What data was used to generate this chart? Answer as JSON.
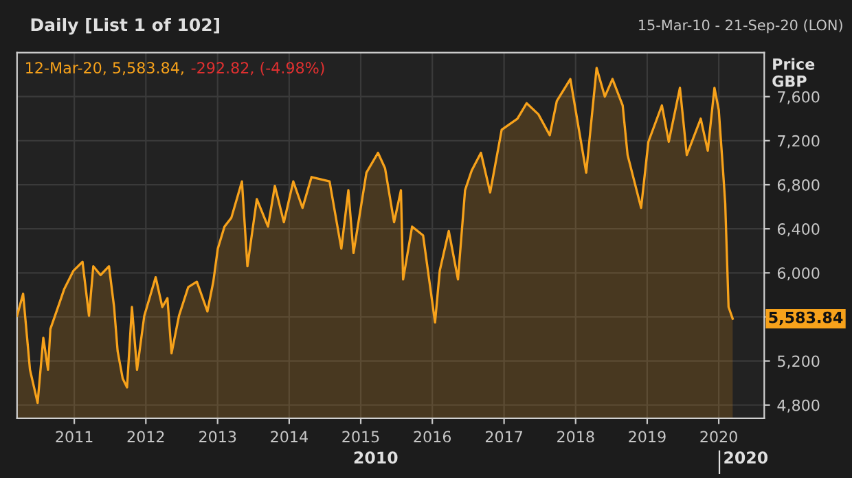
{
  "chart_data": {
    "type": "area",
    "title": "Daily [List 1 of 102]",
    "subtitle": "15-Mar-10 - 21-Sep-20 (LON)",
    "ylabel": "Price\nGBP",
    "series": [
      {
        "name": "12-Mar-20, 5,583.84,",
        "color": "#f7a21b",
        "x": [
          "2010-03-15",
          "2010-04-15",
          "2010-05-20",
          "2010-06-28",
          "2010-07-27",
          "2010-08-20",
          "2010-09-01",
          "2010-10-18",
          "2010-11-10",
          "2010-12-28",
          "2011-02-12",
          "2011-03-17",
          "2011-04-08",
          "2011-05-15",
          "2011-06-27",
          "2011-07-23",
          "2011-08-10",
          "2011-09-05",
          "2011-09-27",
          "2011-10-22",
          "2011-11-17",
          "2011-12-24",
          "2012-02-20",
          "2012-03-25",
          "2012-04-20",
          "2012-05-11",
          "2012-06-18",
          "2012-08-04",
          "2012-09-17",
          "2012-11-10",
          "2012-12-10",
          "2013-01-02",
          "2013-02-05",
          "2013-03-12",
          "2013-05-05",
          "2013-06-02",
          "2013-07-20",
          "2013-09-15",
          "2013-10-20",
          "2013-12-05",
          "2014-01-22",
          "2014-03-10",
          "2014-04-25",
          "2014-07-26",
          "2014-09-24",
          "2014-10-30",
          "2014-11-25",
          "2015-01-30",
          "2015-03-30",
          "2015-05-05",
          "2015-06-20",
          "2015-07-25",
          "2015-08-05",
          "2015-09-20",
          "2015-11-15",
          "2016-01-15",
          "2016-02-08",
          "2016-03-25",
          "2016-05-11",
          "2016-06-16",
          "2016-07-20",
          "2016-09-05",
          "2016-10-22",
          "2016-12-20",
          "2017-03-10",
          "2017-04-26",
          "2017-06-25",
          "2017-08-22",
          "2017-09-27",
          "2017-12-05",
          "2018-02-24",
          "2018-04-18",
          "2018-05-30",
          "2018-07-08",
          "2018-08-29",
          "2018-09-23",
          "2018-12-01",
          "2019-01-07",
          "2019-03-17",
          "2019-04-21",
          "2019-06-17",
          "2019-07-22",
          "2019-10-01",
          "2019-11-06",
          "2019-12-10",
          "2020-01-01",
          "2020-01-22",
          "2020-02-03",
          "2020-02-20",
          "2020-03-12"
        ],
        "values": [
          5610,
          5810,
          5120,
          4820,
          5410,
          5120,
          5490,
          5730,
          5850,
          6020,
          6100,
          5610,
          6060,
          5980,
          6060,
          5690,
          5290,
          5040,
          4960,
          5690,
          5120,
          5610,
          5960,
          5690,
          5770,
          5270,
          5610,
          5870,
          5920,
          5650,
          5920,
          6220,
          6420,
          6500,
          6830,
          6060,
          6670,
          6420,
          6790,
          6460,
          6830,
          6590,
          6870,
          6830,
          6220,
          6750,
          6180,
          6910,
          7090,
          6950,
          6460,
          6750,
          5940,
          6420,
          6340,
          5550,
          6020,
          6380,
          5940,
          6750,
          6930,
          7090,
          6730,
          7300,
          7400,
          7540,
          7440,
          7250,
          7560,
          7760,
          6910,
          7860,
          7600,
          7760,
          7520,
          7070,
          6590,
          7190,
          7520,
          7190,
          7680,
          7070,
          7400,
          7110,
          7680,
          7480,
          6950,
          6630,
          5690,
          5583.84
        ]
      }
    ],
    "xlim": [
      "2010-03-15",
      "2020-08-20"
    ],
    "xticks": [
      {
        "value": "2011-01-01",
        "label": "2011"
      },
      {
        "value": "2012-01-01",
        "label": "2012"
      },
      {
        "value": "2013-01-01",
        "label": "2013"
      },
      {
        "value": "2014-01-01",
        "label": "2014"
      },
      {
        "value": "2015-01-01",
        "label": "2015"
      },
      {
        "value": "2016-01-01",
        "label": "2016"
      },
      {
        "value": "2017-01-01",
        "label": "2017"
      },
      {
        "value": "2018-01-01",
        "label": "2018"
      },
      {
        "value": "2019-01-01",
        "label": "2019"
      },
      {
        "value": "2020-01-01",
        "label": "2020"
      }
    ],
    "ylim": [
      4680,
      8000
    ],
    "yticks": [
      {
        "value": 4800,
        "label": "4,800"
      },
      {
        "value": 5200,
        "label": "5,200"
      },
      {
        "value": 5600,
        "label": null
      },
      {
        "value": 6000,
        "label": "6,000"
      },
      {
        "value": 6400,
        "label": "6,400"
      },
      {
        "value": 6800,
        "label": "6,800"
      },
      {
        "value": 7200,
        "label": "7,200"
      },
      {
        "value": 7600,
        "label": "7,600"
      }
    ],
    "grid": true,
    "annotations": [
      "-292.82, (-4.98%)",
      "2010",
      "2020",
      {
        "text": "5,583.84",
        "x": "2020-03-12",
        "y": 5583.84
      }
    ]
  }
}
